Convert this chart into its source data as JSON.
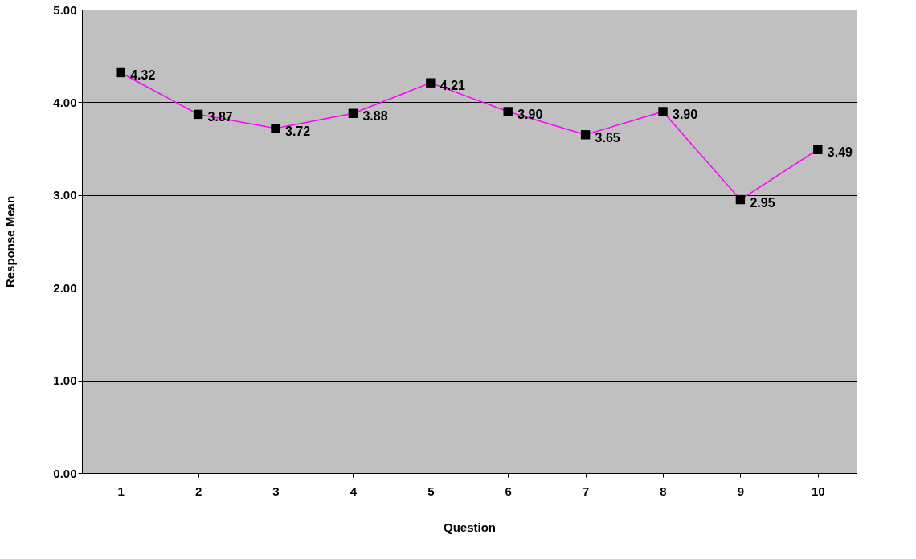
{
  "chart_data": {
    "type": "line",
    "xlabel": "Question",
    "ylabel": "Response Mean",
    "categories": [
      "1",
      "2",
      "3",
      "4",
      "5",
      "6",
      "7",
      "8",
      "9",
      "10"
    ],
    "series": [
      {
        "color": "#ff00ff",
        "values": [
          4.32,
          3.87,
          3.72,
          3.88,
          4.21,
          3.9,
          3.65,
          3.9,
          2.95,
          3.49
        ]
      }
    ],
    "value_labels": [
      "4.32",
      "3.87",
      "3.72",
      "3.88",
      "4.21",
      "3.90",
      "3.65",
      "3.90",
      "2.95",
      "3.49"
    ],
    "ylim": [
      0,
      5
    ],
    "yticks": [
      {
        "value": 0,
        "label": "0.00"
      },
      {
        "value": 1,
        "label": "1.00"
      },
      {
        "value": 2,
        "label": "2.00"
      },
      {
        "value": 3,
        "label": "3.00"
      },
      {
        "value": 4,
        "label": "4.00"
      },
      {
        "value": 5,
        "label": "5.00"
      }
    ],
    "grid": "y",
    "marker": "square",
    "line_style": "solid"
  }
}
